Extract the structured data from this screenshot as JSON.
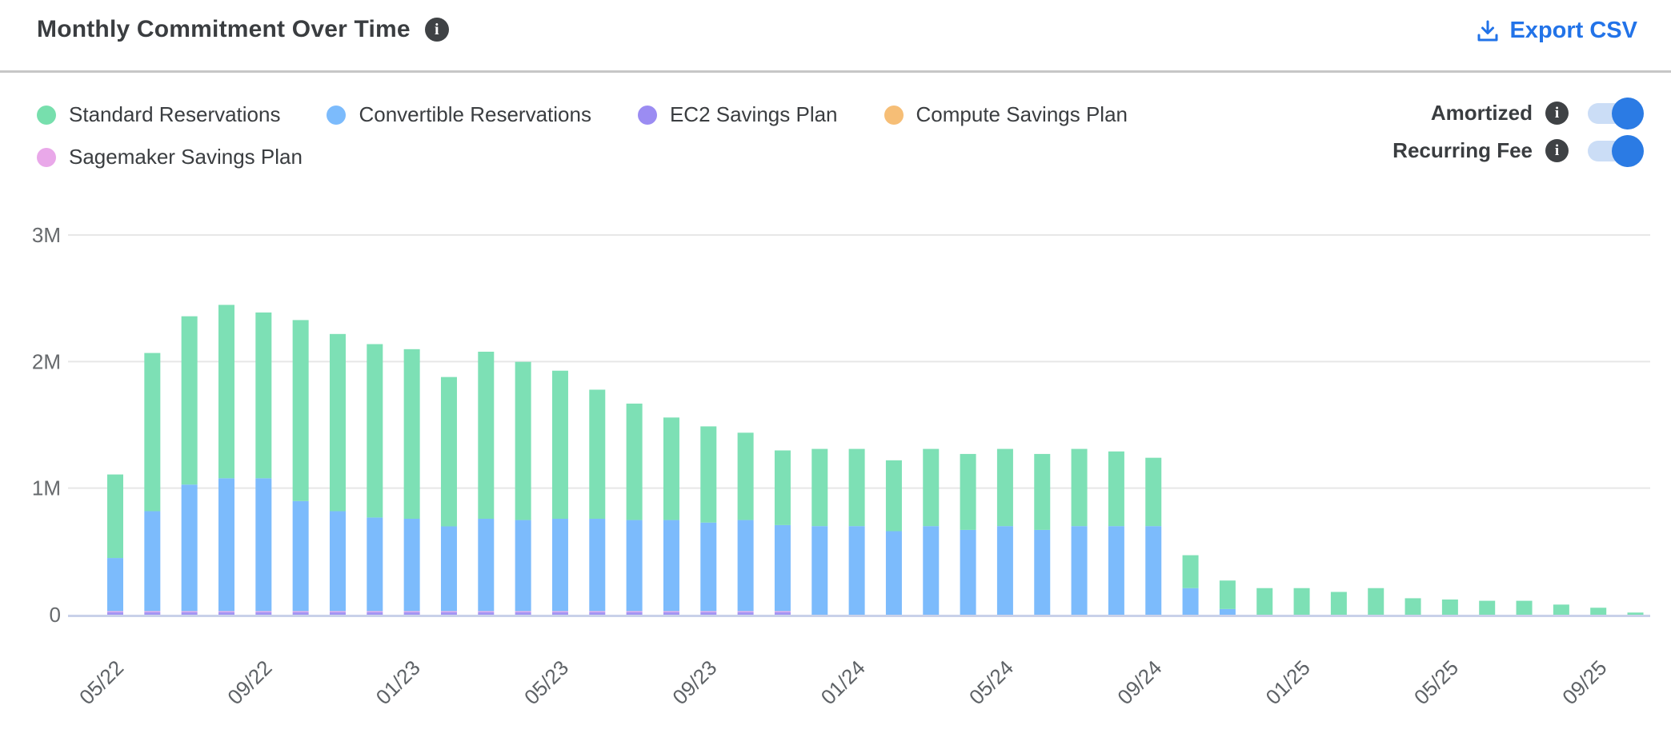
{
  "header": {
    "title": "Monthly Commitment Over Time",
    "title_info_icon": "info-icon",
    "export_label": "Export CSV",
    "export_icon": "download-icon",
    "export_color": "#2273e8"
  },
  "legend": {
    "items": [
      {
        "label": "Standard Reservations",
        "color": "#77dfad"
      },
      {
        "label": "Convertible Reservations",
        "color": "#7cbbfc"
      },
      {
        "label": "EC2 Savings Plan",
        "color": "#9b8cf2"
      },
      {
        "label": "Compute Savings Plan",
        "color": "#f6be76"
      },
      {
        "label": "Sagemaker Savings Plan",
        "color": "#e9a8e9"
      }
    ]
  },
  "toggles": [
    {
      "label": "Amortized",
      "info_icon": "info-icon",
      "state": "on"
    },
    {
      "label": "Recurring Fee",
      "info_icon": "info-icon",
      "state": "on"
    }
  ],
  "toggle_colors": {
    "track": "#cbddf6",
    "knob": "#2b7be4"
  },
  "chart_data": {
    "type": "bar",
    "stacked": true,
    "value_unit": "millions",
    "ylim": [
      0,
      3
    ],
    "ytick_labels": [
      "0",
      "1M",
      "2M",
      "3M"
    ],
    "x_tick_every": 4,
    "gridlines": true,
    "categories": [
      "05/22",
      "06/22",
      "07/22",
      "08/22",
      "09/22",
      "10/22",
      "11/22",
      "12/22",
      "01/23",
      "02/23",
      "03/23",
      "04/23",
      "05/23",
      "06/23",
      "07/23",
      "08/23",
      "09/23",
      "10/23",
      "11/23",
      "12/23",
      "01/24",
      "02/24",
      "03/24",
      "04/24",
      "05/24",
      "06/24",
      "07/24",
      "08/24",
      "09/24",
      "10/24",
      "11/24",
      "12/24",
      "01/25",
      "02/25",
      "03/25",
      "04/25",
      "05/25",
      "06/25",
      "07/25",
      "08/25",
      "09/25",
      "10/25"
    ],
    "series": [
      {
        "name": "Standard Reservations",
        "color": "#7de0b5",
        "values": [
          0.66,
          1.25,
          1.33,
          1.37,
          1.31,
          1.43,
          1.4,
          1.37,
          1.34,
          1.18,
          1.32,
          1.25,
          1.17,
          1.02,
          0.92,
          0.81,
          0.76,
          0.69,
          0.59,
          0.61,
          0.61,
          0.56,
          0.61,
          0.6,
          0.61,
          0.6,
          0.61,
          0.59,
          0.54,
          0.26,
          0.225,
          0.21,
          0.21,
          0.18,
          0.21,
          0.13,
          0.12,
          0.11,
          0.11,
          0.08,
          0.055,
          0.017
        ]
      },
      {
        "name": "Convertible Reservations",
        "color": "#7cbbfc",
        "values": [
          0.42,
          0.79,
          1.0,
          1.05,
          1.05,
          0.87,
          0.79,
          0.74,
          0.73,
          0.67,
          0.73,
          0.72,
          0.73,
          0.73,
          0.72,
          0.72,
          0.7,
          0.72,
          0.68,
          0.7,
          0.7,
          0.66,
          0.7,
          0.67,
          0.7,
          0.67,
          0.7,
          0.7,
          0.7,
          0.21,
          0.045,
          0,
          0,
          0,
          0,
          0,
          0,
          0,
          0,
          0,
          0,
          0
        ]
      },
      {
        "name": "EC2 Savings Plan",
        "color": "#a395f3",
        "values": [
          0.02,
          0.02,
          0.02,
          0.02,
          0.02,
          0.02,
          0.02,
          0.02,
          0.02,
          0.02,
          0.02,
          0.02,
          0.02,
          0.02,
          0.02,
          0.02,
          0.02,
          0.02,
          0.02,
          0,
          0,
          0,
          0,
          0,
          0,
          0,
          0,
          0,
          0,
          0,
          0,
          0,
          0,
          0,
          0,
          0,
          0,
          0,
          0,
          0,
          0,
          0
        ]
      },
      {
        "name": "Compute Savings Plan",
        "color": "#f6be76",
        "values": [
          0,
          0,
          0,
          0,
          0,
          0,
          0,
          0,
          0,
          0,
          0,
          0,
          0,
          0,
          0,
          0,
          0,
          0,
          0,
          0,
          0,
          0,
          0,
          0,
          0,
          0,
          0,
          0,
          0,
          0,
          0,
          0,
          0,
          0,
          0,
          0,
          0,
          0,
          0,
          0,
          0,
          0
        ]
      },
      {
        "name": "Sagemaker Savings Plan",
        "color": "#e9a8e9",
        "values": [
          0.008,
          0.008,
          0.008,
          0.008,
          0.008,
          0.008,
          0.008,
          0.008,
          0.008,
          0.008,
          0.008,
          0.008,
          0.008,
          0.008,
          0.008,
          0.008,
          0.008,
          0.008,
          0.008,
          0,
          0,
          0,
          0,
          0,
          0,
          0,
          0,
          0,
          0,
          0,
          0,
          0,
          0,
          0,
          0,
          0,
          0,
          0,
          0,
          0,
          0,
          0
        ]
      }
    ],
    "stack_order_bottom_to_top": [
      "EC2 Savings Plan",
      "Sagemaker Savings Plan",
      "Compute Savings Plan",
      "Convertible Reservations",
      "Standard Reservations"
    ],
    "axis_colors": {
      "gridline": "#e7e7e7",
      "zero_line": "#c9d1e9",
      "ytick_text": "#66696c",
      "xtick_text": "#5e6266"
    }
  }
}
